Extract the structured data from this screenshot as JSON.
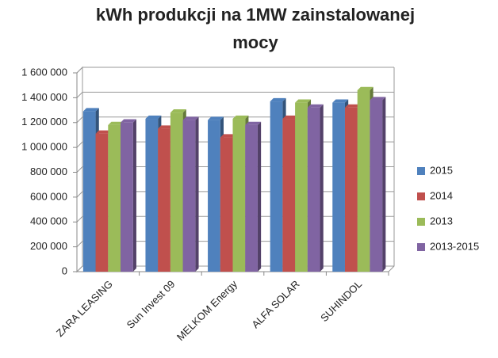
{
  "chart_data": {
    "type": "bar3d",
    "title_lines": [
      "kWh produkcji na 1MW zainstalowanej",
      "mocy"
    ],
    "categories": [
      "ZARA LEASING",
      "Sun Invest 09",
      "MELKOM Energy",
      "ALFA SOLAR",
      "SUHINDOL"
    ],
    "series": [
      {
        "name": "2015",
        "color": "#4f81bd",
        "values": [
          1290000,
          1230000,
          1220000,
          1370000,
          1360000
        ]
      },
      {
        "name": "2014",
        "color": "#c0504d",
        "values": [
          1110000,
          1150000,
          1080000,
          1230000,
          1320000
        ]
      },
      {
        "name": "2013",
        "color": "#9bbb59",
        "values": [
          1180000,
          1280000,
          1230000,
          1360000,
          1460000
        ]
      },
      {
        "name": "2013-2015",
        "color": "#8064a2",
        "values": [
          1200000,
          1220000,
          1180000,
          1320000,
          1380000
        ]
      }
    ],
    "ylim": [
      0,
      1600000
    ],
    "yticks": [
      0,
      {
        "value": 200000,
        "label": "200 000"
      },
      {
        "value": 400000,
        "label": "400 000"
      },
      {
        "value": 600000,
        "label": "600 000"
      },
      {
        "value": 800000,
        "label": "800 000"
      },
      {
        "value": 1000000,
        "label": "1 000 000"
      },
      {
        "value": 1200000,
        "label": "1 200 000"
      },
      {
        "value": 1400000,
        "label": "1 400 000"
      },
      {
        "value": 1600000,
        "label": "1 600 000"
      }
    ],
    "grid": true,
    "legend": "right"
  }
}
